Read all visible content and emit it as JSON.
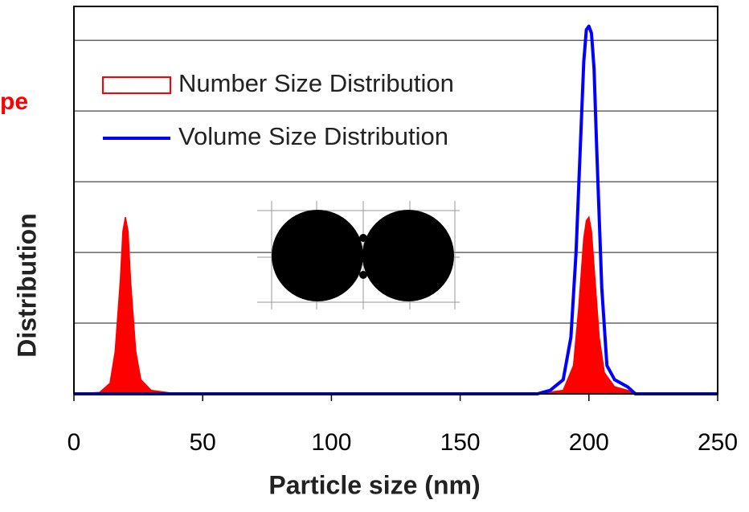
{
  "chart_data": {
    "type": "line",
    "annotation": "pe",
    "xlabel": "Particle size (nm)",
    "ylabel": "Distribution",
    "xlim": [
      0,
      250
    ],
    "xticks": [
      0,
      50,
      100,
      150,
      200,
      250
    ],
    "ylim": [
      0,
      5.48
    ],
    "yticks": [
      0,
      1,
      2,
      3,
      4,
      5
    ],
    "grid": true,
    "legend": "upper left",
    "series": [
      {
        "name": "Number Size Distribution",
        "color": "#ff0000",
        "style": "filled",
        "x": [
          0,
          10,
          14,
          16,
          18,
          19,
          20,
          21,
          22,
          24,
          26,
          30,
          40,
          50,
          180,
          190,
          194,
          196,
          198,
          199,
          200,
          201,
          202,
          204,
          206,
          210,
          220,
          250
        ],
        "values": [
          0,
          0.02,
          0.15,
          0.6,
          1.6,
          2.3,
          2.5,
          2.3,
          1.6,
          0.6,
          0.2,
          0.05,
          0,
          0,
          0,
          0.05,
          0.4,
          1.2,
          2.2,
          2.45,
          2.5,
          2.3,
          1.8,
          0.8,
          0.3,
          0.1,
          0,
          0
        ]
      },
      {
        "name": "Volume Size Distribution",
        "color": "#0000ff",
        "style": "line",
        "x": [
          0,
          180,
          185,
          190,
          193,
          195,
          197,
          198,
          199,
          200,
          201,
          202,
          203,
          205,
          207,
          210,
          215,
          218,
          250
        ],
        "values": [
          0,
          0,
          0.05,
          0.2,
          0.8,
          2,
          3.8,
          4.7,
          5.15,
          5.2,
          5.1,
          4.6,
          3.5,
          1.5,
          0.4,
          0.2,
          0.1,
          0,
          0
        ]
      }
    ]
  }
}
